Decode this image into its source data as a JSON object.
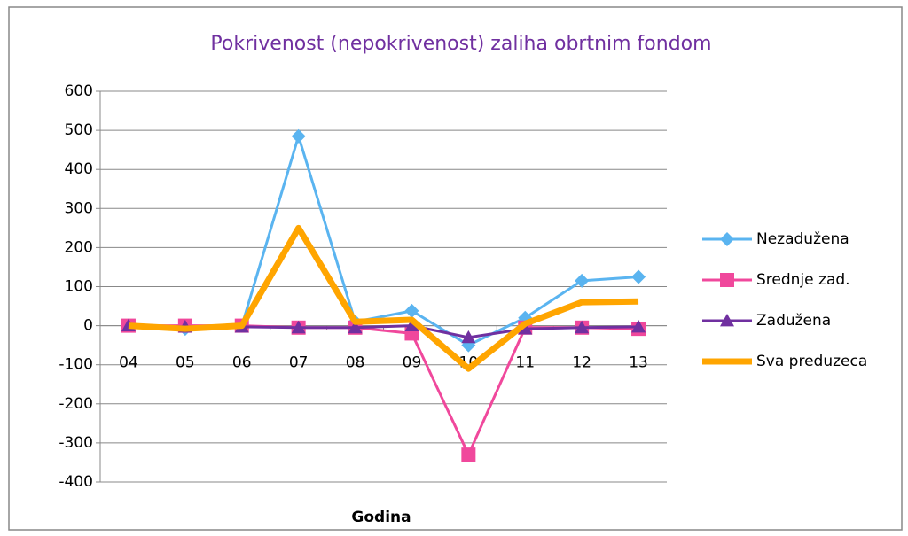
{
  "chart_data": {
    "type": "line",
    "title": "Pokrivenost (nepokrivenost) zaliha obrtnim fondom",
    "x_label": "Godina",
    "categories": [
      "04",
      "05",
      "06",
      "07",
      "08",
      "09",
      "10",
      "11",
      "12",
      "13"
    ],
    "series": [
      {
        "name": "Nezadužena",
        "color": "#5ab4f0",
        "marker": "diamond",
        "line_width": 3,
        "values": [
          0,
          -8,
          0,
          485,
          10,
          38,
          -50,
          20,
          115,
          125
        ]
      },
      {
        "name": "Srednje zad.",
        "color": "#f0489c",
        "marker": "square",
        "line_width": 3,
        "values": [
          0,
          0,
          0,
          -5,
          -5,
          -20,
          -330,
          -5,
          -5,
          -8
        ]
      },
      {
        "name": "Zadužena",
        "color": "#7030a0",
        "marker": "triangle",
        "line_width": 3,
        "values": [
          0,
          -3,
          -3,
          -5,
          -5,
          0,
          -30,
          -8,
          -5,
          -3
        ]
      },
      {
        "name": "Sva preduzeca",
        "color": "#ffa500",
        "line_width": 7,
        "values": [
          0,
          -8,
          0,
          250,
          10,
          15,
          -110,
          5,
          60,
          62
        ]
      }
    ],
    "ylim": [
      -400,
      600
    ],
    "yticks": [
      -400,
      -300,
      -200,
      -100,
      0,
      100,
      200,
      300,
      400,
      500,
      600
    ],
    "grid": true,
    "legend": "right"
  }
}
